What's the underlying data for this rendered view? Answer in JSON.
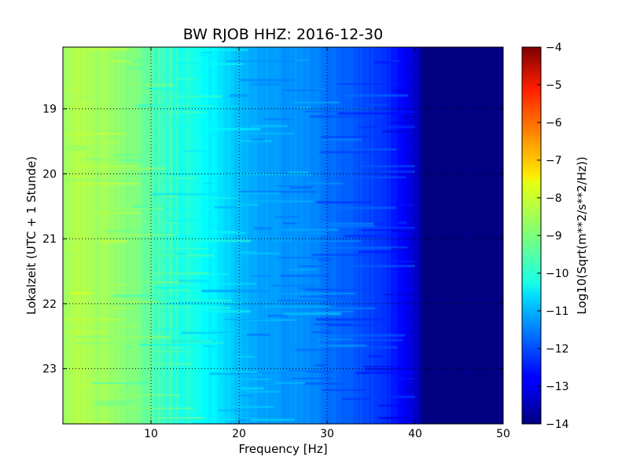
{
  "chart_data": {
    "type": "heatmap",
    "title": "BW RJOB HHZ: 2016-12-30",
    "xlabel": "Frequency [Hz]",
    "ylabel": "Lokalzeit (UTC + 1 Stunde)",
    "xlim": [
      0,
      50
    ],
    "ylim": [
      23.85,
      18.05
    ],
    "x_ticks": [
      10,
      20,
      30,
      40,
      50
    ],
    "x_tick_labels": [
      "10",
      "20",
      "30",
      "40",
      "50"
    ],
    "y_ticks": [
      19,
      20,
      21,
      22,
      23
    ],
    "y_tick_labels": [
      "19",
      "20",
      "21",
      "22",
      "23"
    ],
    "grid": true,
    "colorbar": {
      "label": "Log10(Sqrt(m**2/s**2/Hz))",
      "range": [
        -14,
        -4
      ],
      "ticks": [
        -4,
        -5,
        -6,
        -7,
        -8,
        -9,
        -10,
        -11,
        -12,
        -13,
        -14
      ],
      "tick_labels": [
        "−4",
        "−5",
        "−6",
        "−7",
        "−8",
        "−9",
        "−10",
        "−11",
        "−12",
        "−13",
        "−14"
      ],
      "colormap": "jet"
    },
    "spectrum_profile": {
      "frequency_hz": [
        0,
        2,
        5,
        8,
        10,
        12,
        14,
        16,
        18,
        20,
        22,
        25,
        28,
        30,
        33,
        36,
        38,
        40,
        41,
        50
      ],
      "level": [
        -8.7,
        -8.5,
        -8.7,
        -9.0,
        -9.3,
        -9.6,
        -9.9,
        -10.2,
        -10.5,
        -10.9,
        -11.1,
        -11.3,
        -11.4,
        -11.6,
        -11.9,
        -12.2,
        -12.6,
        -13.2,
        -14.0,
        -14.0
      ]
    }
  }
}
